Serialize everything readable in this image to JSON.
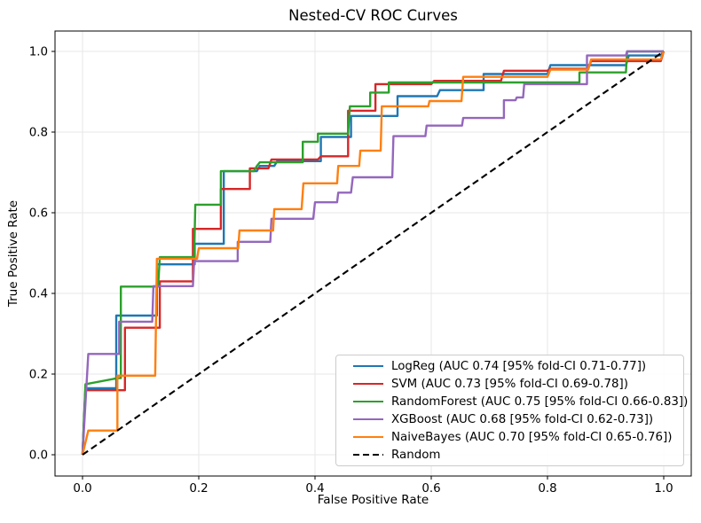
{
  "title": "Nested-CV ROC Curves",
  "axes": {
    "xlabel": "False Positive Rate",
    "ylabel": "True Positive Rate",
    "x_tick_labels": [
      "0.0",
      "0.2",
      "0.4",
      "0.6",
      "0.8",
      "1.0"
    ],
    "y_tick_labels": [
      "0.0",
      "0.2",
      "0.4",
      "0.6",
      "0.8",
      "1.0"
    ]
  },
  "chart_data": {
    "type": "line",
    "title": "Nested-CV ROC Curves",
    "xlabel": "False Positive Rate",
    "ylabel": "True Positive Rate",
    "xlim": [
      -0.05,
      1.05
    ],
    "ylim": [
      -0.05,
      1.05
    ],
    "x_ticks": [
      0.0,
      0.2,
      0.4,
      0.6,
      0.8,
      1.0
    ],
    "y_ticks": [
      0.0,
      0.2,
      0.4,
      0.6,
      0.8,
      1.0
    ],
    "grid": true,
    "grid_color": "#e7e7e7",
    "legend_position": "lower right",
    "series": [
      {
        "name": "LogReg",
        "legend_label": "LogReg (AUC 0.74 [95% fold-CI 0.71-0.77])",
        "auc": 0.74,
        "ci": [
          0.71,
          0.77
        ],
        "color": "#1f77b4",
        "style": "solid",
        "points": [
          [
            0,
            0
          ],
          [
            0.005,
            0.165
          ],
          [
            0.058,
            0.165
          ],
          [
            0.058,
            0.345
          ],
          [
            0.128,
            0.345
          ],
          [
            0.128,
            0.472
          ],
          [
            0.193,
            0.472
          ],
          [
            0.193,
            0.523
          ],
          [
            0.243,
            0.523
          ],
          [
            0.243,
            0.703
          ],
          [
            0.3,
            0.703
          ],
          [
            0.305,
            0.716
          ],
          [
            0.33,
            0.716
          ],
          [
            0.335,
            0.728
          ],
          [
            0.41,
            0.728
          ],
          [
            0.41,
            0.788
          ],
          [
            0.462,
            0.788
          ],
          [
            0.462,
            0.84
          ],
          [
            0.542,
            0.84
          ],
          [
            0.542,
            0.889
          ],
          [
            0.61,
            0.889
          ],
          [
            0.615,
            0.904
          ],
          [
            0.69,
            0.904
          ],
          [
            0.69,
            0.944
          ],
          [
            0.8,
            0.944
          ],
          [
            0.805,
            0.966
          ],
          [
            0.935,
            0.966
          ],
          [
            0.94,
            0.99
          ],
          [
            0.995,
            0.99
          ],
          [
            1.0,
            1.0
          ]
        ]
      },
      {
        "name": "SVM",
        "legend_label": "SVM (AUC 0.73 [95% fold-CI 0.69-0.78])",
        "auc": 0.73,
        "ci": [
          0.69,
          0.78
        ],
        "color": "#d62728",
        "style": "solid",
        "points": [
          [
            0,
            0
          ],
          [
            0.005,
            0.16
          ],
          [
            0.073,
            0.16
          ],
          [
            0.073,
            0.315
          ],
          [
            0.133,
            0.315
          ],
          [
            0.133,
            0.43
          ],
          [
            0.19,
            0.43
          ],
          [
            0.19,
            0.56
          ],
          [
            0.238,
            0.56
          ],
          [
            0.238,
            0.659
          ],
          [
            0.288,
            0.659
          ],
          [
            0.288,
            0.71
          ],
          [
            0.32,
            0.71
          ],
          [
            0.325,
            0.732
          ],
          [
            0.405,
            0.732
          ],
          [
            0.41,
            0.74
          ],
          [
            0.457,
            0.74
          ],
          [
            0.457,
            0.853
          ],
          [
            0.504,
            0.853
          ],
          [
            0.504,
            0.919
          ],
          [
            0.6,
            0.919
          ],
          [
            0.605,
            0.927
          ],
          [
            0.72,
            0.927
          ],
          [
            0.725,
            0.952
          ],
          [
            0.8,
            0.952
          ],
          [
            0.805,
            0.957
          ],
          [
            0.87,
            0.957
          ],
          [
            0.875,
            0.976
          ],
          [
            0.995,
            0.976
          ],
          [
            1.0,
            1.0
          ]
        ]
      },
      {
        "name": "RandomForest",
        "legend_label": "RandomForest (AUC 0.75 [95% fold-CI 0.66-0.83])",
        "auc": 0.75,
        "ci": [
          0.66,
          0.83
        ],
        "color": "#2ca02c",
        "style": "solid",
        "points": [
          [
            0,
            0
          ],
          [
            0.005,
            0.175
          ],
          [
            0.06,
            0.19
          ],
          [
            0.066,
            0.19
          ],
          [
            0.066,
            0.417
          ],
          [
            0.13,
            0.417
          ],
          [
            0.133,
            0.49
          ],
          [
            0.192,
            0.49
          ],
          [
            0.194,
            0.62
          ],
          [
            0.238,
            0.62
          ],
          [
            0.238,
            0.703
          ],
          [
            0.295,
            0.703
          ],
          [
            0.3,
            0.716
          ],
          [
            0.305,
            0.725
          ],
          [
            0.379,
            0.725
          ],
          [
            0.379,
            0.776
          ],
          [
            0.405,
            0.776
          ],
          [
            0.405,
            0.796
          ],
          [
            0.457,
            0.796
          ],
          [
            0.46,
            0.864
          ],
          [
            0.495,
            0.864
          ],
          [
            0.495,
            0.898
          ],
          [
            0.527,
            0.898
          ],
          [
            0.527,
            0.923
          ],
          [
            0.855,
            0.923
          ],
          [
            0.855,
            0.948
          ],
          [
            0.935,
            0.948
          ],
          [
            0.937,
            1.0
          ],
          [
            1.0,
            1.0
          ]
        ]
      },
      {
        "name": "XGBoost",
        "legend_label": "XGBoost (AUC 0.68 [95% fold-CI 0.62-0.73])",
        "auc": 0.68,
        "ci": [
          0.62,
          0.73
        ],
        "color": "#9467bd",
        "style": "solid",
        "points": [
          [
            0,
            0
          ],
          [
            0.01,
            0.25
          ],
          [
            0.063,
            0.25
          ],
          [
            0.063,
            0.33
          ],
          [
            0.12,
            0.33
          ],
          [
            0.122,
            0.418
          ],
          [
            0.19,
            0.418
          ],
          [
            0.192,
            0.48
          ],
          [
            0.267,
            0.48
          ],
          [
            0.267,
            0.528
          ],
          [
            0.323,
            0.528
          ],
          [
            0.325,
            0.585
          ],
          [
            0.397,
            0.585
          ],
          [
            0.4,
            0.626
          ],
          [
            0.438,
            0.626
          ],
          [
            0.44,
            0.65
          ],
          [
            0.462,
            0.65
          ],
          [
            0.465,
            0.688
          ],
          [
            0.533,
            0.688
          ],
          [
            0.535,
            0.79
          ],
          [
            0.59,
            0.79
          ],
          [
            0.592,
            0.816
          ],
          [
            0.653,
            0.816
          ],
          [
            0.655,
            0.835
          ],
          [
            0.725,
            0.835
          ],
          [
            0.725,
            0.879
          ],
          [
            0.745,
            0.879
          ],
          [
            0.747,
            0.886
          ],
          [
            0.758,
            0.886
          ],
          [
            0.76,
            0.919
          ],
          [
            0.868,
            0.919
          ],
          [
            0.868,
            0.99
          ],
          [
            0.935,
            0.99
          ],
          [
            0.937,
            1.0
          ],
          [
            1.0,
            1.0
          ]
        ]
      },
      {
        "name": "NaiveBayes",
        "legend_label": "NaiveBayes (AUC 0.70 [95% fold-CI 0.65-0.76])",
        "auc": 0.7,
        "ci": [
          0.65,
          0.76
        ],
        "color": "#ff7f0e",
        "style": "solid",
        "points": [
          [
            0,
            0
          ],
          [
            0.01,
            0.06
          ],
          [
            0.06,
            0.06
          ],
          [
            0.06,
            0.196
          ],
          [
            0.125,
            0.196
          ],
          [
            0.128,
            0.486
          ],
          [
            0.197,
            0.486
          ],
          [
            0.2,
            0.512
          ],
          [
            0.268,
            0.512
          ],
          [
            0.27,
            0.556
          ],
          [
            0.328,
            0.556
          ],
          [
            0.33,
            0.609
          ],
          [
            0.377,
            0.609
          ],
          [
            0.38,
            0.673
          ],
          [
            0.438,
            0.673
          ],
          [
            0.44,
            0.716
          ],
          [
            0.476,
            0.716
          ],
          [
            0.478,
            0.754
          ],
          [
            0.513,
            0.754
          ],
          [
            0.515,
            0.864
          ],
          [
            0.595,
            0.864
          ],
          [
            0.597,
            0.877
          ],
          [
            0.652,
            0.877
          ],
          [
            0.655,
            0.937
          ],
          [
            0.8,
            0.937
          ],
          [
            0.805,
            0.955
          ],
          [
            0.87,
            0.955
          ],
          [
            0.875,
            0.98
          ],
          [
            0.995,
            0.98
          ],
          [
            1.0,
            1.0
          ]
        ]
      },
      {
        "name": "Random",
        "legend_label": "Random",
        "color": "#000000",
        "style": "dashed",
        "points": [
          [
            0,
            0
          ],
          [
            1,
            1
          ]
        ]
      }
    ]
  }
}
